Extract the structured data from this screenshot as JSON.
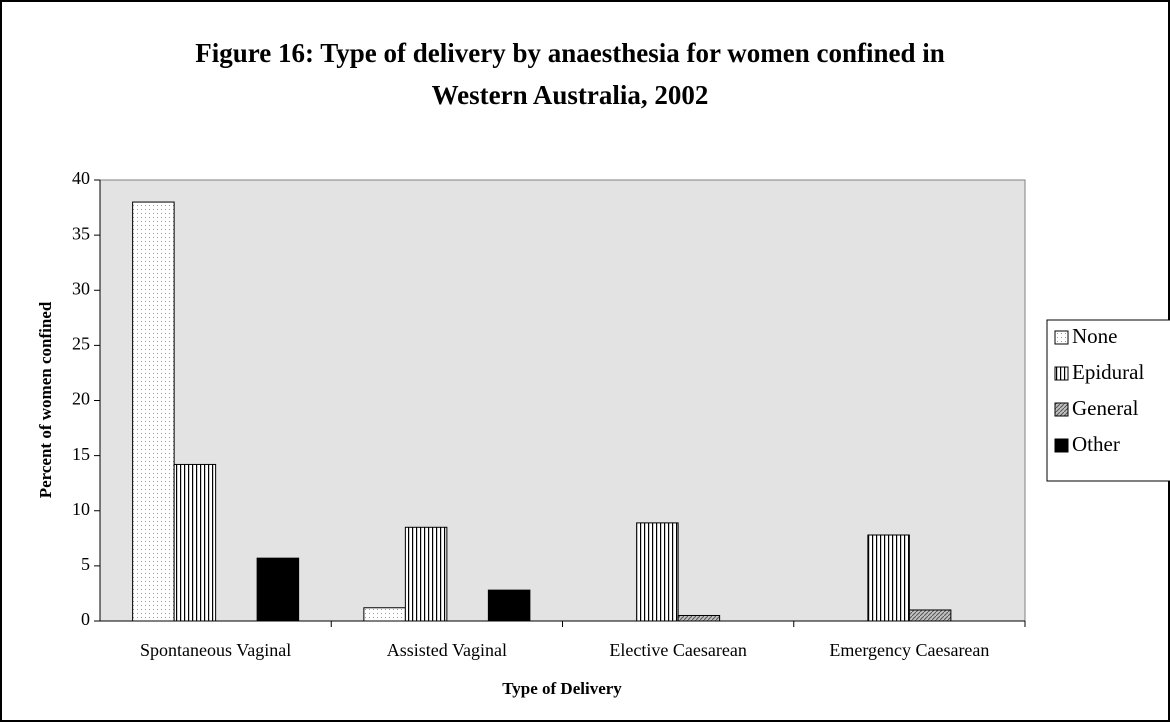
{
  "chart_data": {
    "type": "bar",
    "title": [
      "Figure 16: Type of delivery by anaesthesia for women confined in",
      "Western Australia, 2002"
    ],
    "x_label": "Type of Delivery",
    "y_label": "Percent of women confined",
    "categories": [
      "Spontaneous Vaginal",
      "Assisted Vaginal",
      "Elective Caesarean",
      "Emergency Caesarean"
    ],
    "series": [
      {
        "name": "None",
        "color": "#ffffff",
        "pattern": "dots",
        "values": [
          38,
          1.2,
          0,
          0
        ]
      },
      {
        "name": "Epidural",
        "color": "#ffffff",
        "pattern": "vertical",
        "values": [
          14.2,
          8.5,
          8.9,
          7.8
        ]
      },
      {
        "name": "General",
        "color": "#c0c0c0",
        "pattern": "diagonal",
        "values": [
          0,
          0,
          0.5,
          1.0
        ]
      },
      {
        "name": "Other",
        "color": "#000000",
        "pattern": "solid",
        "values": [
          5.7,
          2.8,
          0,
          0
        ]
      }
    ],
    "ylim": [
      0,
      40
    ],
    "yticks": [
      0,
      5,
      10,
      15,
      20,
      25,
      30,
      35,
      40
    ],
    "grid": false,
    "legend": "right",
    "plot_background": "#e3e3e3"
  }
}
